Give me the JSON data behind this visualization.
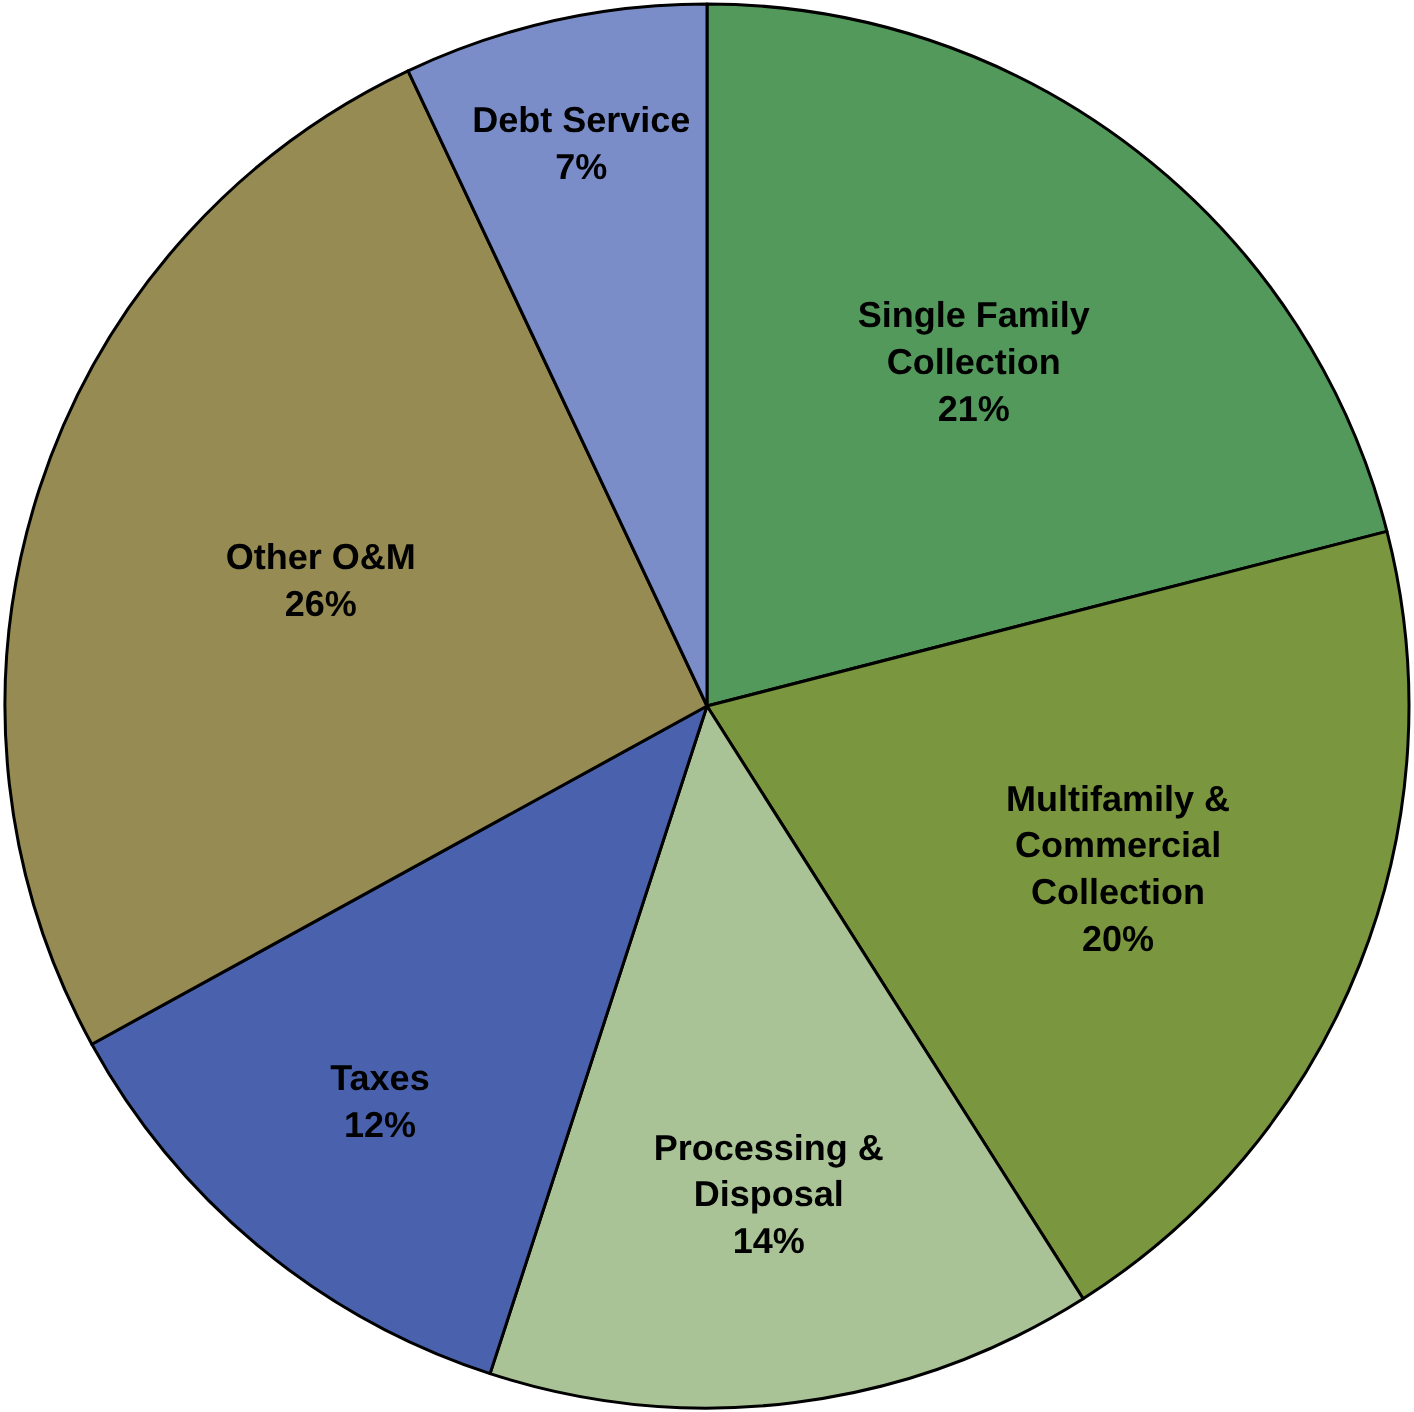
{
  "chart_data": {
    "type": "pie",
    "categories": [
      "Single Family Collection",
      "Multifamily & Commercial Collection",
      "Processing & Disposal",
      "Taxes",
      "Other O&M",
      "Debt Service"
    ],
    "values": [
      21,
      20,
      14,
      12,
      26,
      7
    ],
    "value_labels": [
      "21%",
      "20%",
      "14%",
      "12%",
      "26%",
      "7%"
    ],
    "colors": [
      "#52995b",
      "#7a963e",
      "#a9c396",
      "#4a62ad",
      "#968b52",
      "#7a8dc8"
    ],
    "legend": false
  }
}
